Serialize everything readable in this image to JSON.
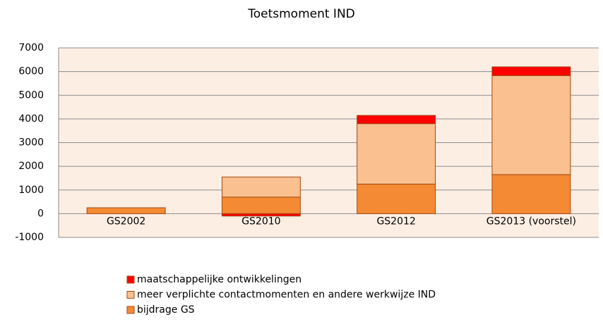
{
  "chart_data": {
    "type": "stacked_bar",
    "title": "Toetsmoment IND",
    "categories": [
      "GS2002",
      "GS2010",
      "GS2012",
      "GS2013 (voorstel)"
    ],
    "series": [
      {
        "name": "bijdrage GS",
        "color": "#f58a34",
        "values": [
          250,
          700,
          1250,
          1650
        ]
      },
      {
        "name": "meer verplichte contactmomenten en andere werkwijze IND",
        "color": "#fac090",
        "values": [
          0,
          850,
          2550,
          4180
        ]
      },
      {
        "name": "maatschappelijke ontwikkelingen",
        "color": "#ff0000",
        "values": [
          0,
          -100,
          350,
          370
        ]
      }
    ],
    "ylim": [
      -1000,
      7000
    ],
    "yticks": [
      -1000,
      0,
      1000,
      2000,
      3000,
      4000,
      5000,
      6000,
      7000
    ],
    "grid": true
  }
}
